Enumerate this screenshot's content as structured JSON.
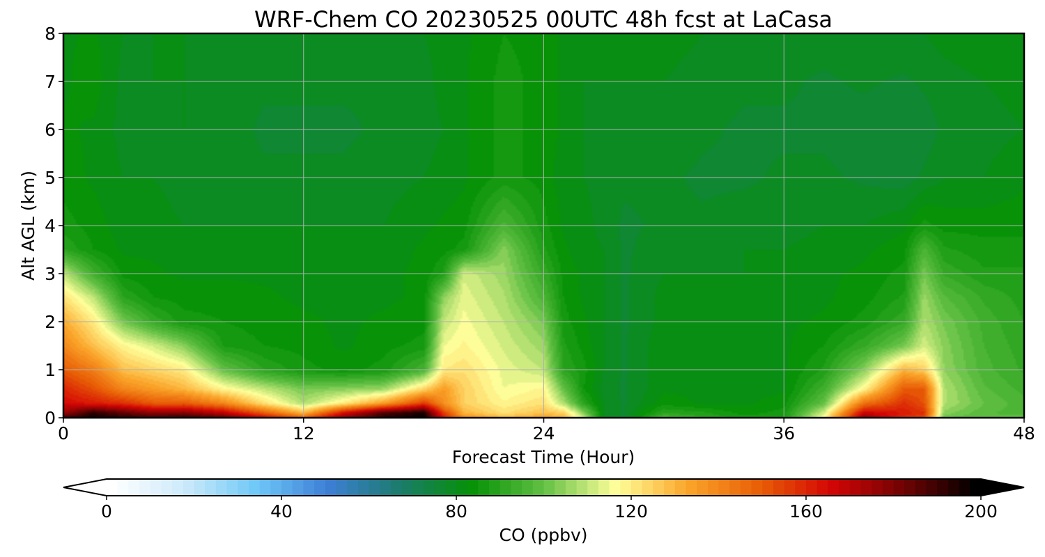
{
  "chart_data": {
    "type": "heatmap",
    "title": "WRF-Chem CO  20230525 00UTC 48h fcst at LaCasa",
    "xlabel": "Forecast Time (Hour)",
    "ylabel": "Alt AGL (km)",
    "xlim": [
      0,
      48
    ],
    "ylim": [
      0,
      8
    ],
    "xticks": [
      "0",
      "12",
      "24",
      "36",
      "48"
    ],
    "yticks": [
      "0",
      "1",
      "2",
      "3",
      "4",
      "5",
      "6",
      "7",
      "8"
    ],
    "grid": true,
    "colorbar": {
      "label": "CO  (ppbv)",
      "range": [
        0,
        200
      ],
      "ticks": [
        "0",
        "40",
        "80",
        "120",
        "160",
        "200"
      ],
      "extend": "both",
      "colors": [
        "#ffffff",
        "#cdeafa",
        "#6fc8f7",
        "#3d7fd6",
        "#1b7b6b",
        "#069106",
        "#62c044",
        "#ffff9a",
        "#fba52a",
        "#e85e06",
        "#d30505",
        "#700303",
        "#000000"
      ]
    },
    "x": [
      0,
      1.5,
      3,
      4.5,
      6,
      8,
      10,
      12,
      14,
      16,
      18,
      19,
      20,
      22,
      24,
      25,
      26,
      27,
      28,
      30,
      32,
      34,
      36,
      38,
      40,
      42,
      43,
      44,
      46,
      48
    ],
    "y": [
      0,
      0.1,
      0.3,
      0.6,
      1,
      1.5,
      2,
      2.5,
      3,
      3.5,
      4,
      5,
      6,
      7,
      8
    ],
    "values": [
      [
        190,
        196,
        193,
        190,
        192,
        186,
        168,
        150,
        178,
        193,
        198,
        165,
        140,
        130,
        135,
        130,
        110,
        80,
        77,
        96,
        90,
        86,
        86,
        118,
        178,
        158,
        154,
        100,
        98,
        100
      ],
      [
        175,
        193,
        185,
        178,
        180,
        170,
        150,
        130,
        165,
        188,
        196,
        155,
        130,
        122,
        128,
        125,
        104,
        80,
        77,
        90,
        88,
        84,
        86,
        112,
        168,
        162,
        158,
        104,
        98,
        96
      ],
      [
        165,
        162,
        158,
        150,
        150,
        140,
        122,
        108,
        120,
        135,
        156,
        138,
        125,
        118,
        122,
        108,
        90,
        80,
        77,
        84,
        82,
        82,
        84,
        100,
        145,
        158,
        152,
        108,
        100,
        96
      ],
      [
        160,
        152,
        140,
        135,
        130,
        118,
        110,
        102,
        104,
        106,
        124,
        135,
        125,
        115,
        118,
        100,
        85,
        79,
        77,
        82,
        82,
        81,
        82,
        94,
        118,
        150,
        150,
        108,
        98,
        94
      ],
      [
        150,
        142,
        128,
        124,
        120,
        100,
        90,
        86,
        84,
        86,
        95,
        120,
        122,
        114,
        110,
        90,
        86,
        80,
        77,
        82,
        82,
        81,
        82,
        88,
        104,
        130,
        125,
        105,
        96,
        92
      ],
      [
        140,
        128,
        118,
        112,
        104,
        87,
        85,
        84,
        82,
        84,
        86,
        115,
        118,
        112,
        106,
        88,
        84,
        80,
        77,
        82,
        82,
        81,
        82,
        85,
        92,
        102,
        112,
        104,
        95,
        91
      ],
      [
        132,
        120,
        102,
        92,
        86,
        85,
        84,
        83,
        82,
        83,
        84,
        110,
        116,
        110,
        102,
        86,
        83,
        80,
        77,
        81,
        82,
        81,
        82,
        83,
        86,
        92,
        108,
        102,
        94,
        90
      ],
      [
        122,
        110,
        90,
        85,
        84,
        84,
        83,
        82,
        82,
        82,
        83,
        105,
        114,
        108,
        96,
        85,
        82,
        80,
        77,
        81,
        81,
        81,
        81,
        82,
        84,
        88,
        106,
        98,
        92,
        89
      ],
      [
        110,
        94,
        84,
        83,
        82,
        82,
        82,
        82,
        81,
        82,
        83,
        88,
        112,
        106,
        92,
        84,
        82,
        80,
        77,
        80,
        80,
        80,
        81,
        82,
        83,
        86,
        102,
        92,
        88,
        88
      ],
      [
        90,
        85,
        82,
        82,
        81,
        81,
        81,
        81,
        81,
        81,
        83,
        84,
        86,
        104,
        88,
        83,
        81,
        80,
        77,
        79,
        79,
        80,
        80,
        81,
        82,
        84,
        96,
        88,
        86,
        86
      ],
      [
        86,
        84,
        81,
        81,
        80,
        80,
        80,
        80,
        80,
        80,
        82,
        83,
        84,
        96,
        86,
        82,
        81,
        79,
        77,
        78,
        78,
        79,
        79,
        80,
        80,
        82,
        86,
        84,
        84,
        84
      ],
      [
        84,
        82,
        80,
        80,
        79,
        79,
        78,
        78,
        78,
        79,
        80,
        81,
        82,
        86,
        84,
        81,
        80,
        79,
        78,
        78,
        77,
        77,
        78,
        78,
        77,
        76,
        78,
        80,
        80,
        82
      ],
      [
        83,
        82,
        79,
        79,
        80,
        79,
        77,
        77,
        77,
        78,
        79,
        80,
        82,
        86,
        84,
        82,
        80,
        79,
        79,
        79,
        78,
        77,
        77,
        77,
        76,
        75,
        76,
        78,
        79,
        80
      ],
      [
        82,
        84,
        79,
        80,
        80,
        79,
        78,
        78,
        78,
        78,
        79,
        81,
        82,
        86,
        84,
        82,
        80,
        80,
        80,
        80,
        79,
        78,
        78,
        77,
        78,
        77,
        78,
        79,
        80,
        81
      ],
      [
        82,
        83,
        80,
        80,
        80,
        80,
        79,
        79,
        79,
        79,
        80,
        81,
        82,
        85,
        84,
        82,
        80,
        80,
        80,
        81,
        80,
        79,
        79,
        79,
        80,
        80,
        80,
        81,
        82,
        82
      ]
    ]
  }
}
